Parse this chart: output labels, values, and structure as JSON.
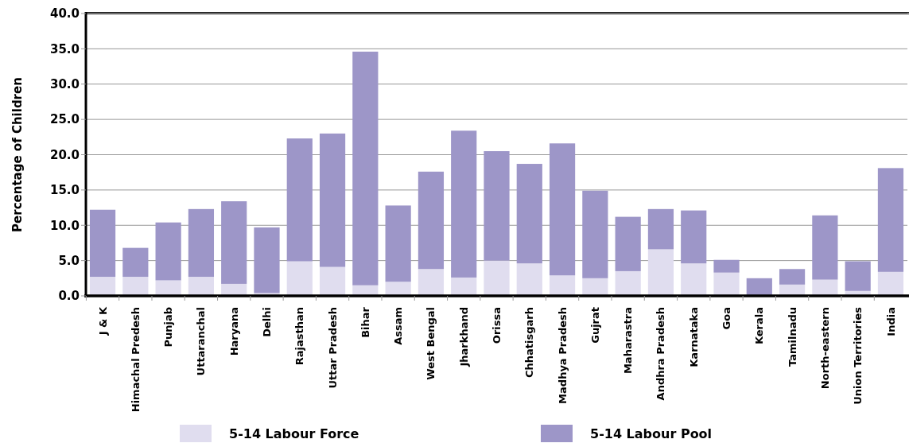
{
  "chart_data": {
    "type": "bar",
    "stacked": true,
    "ylabel": "Percentage of Children",
    "categories": [
      "J & K",
      "Himachal Predesh",
      "Punjab",
      "Uttaranchal",
      "Haryana",
      "Delhi",
      "Rajasthan",
      "Uttar Pradesh",
      "Bihar",
      "Assam",
      "West Bengal",
      "Jharkhand",
      "Orissa",
      "Chhatisgarh",
      "Madhya Pradesh",
      "Gujrat",
      "Maharastra",
      "Andhra Pradesh",
      "Karnataka",
      "Goa",
      "Kerala",
      "Tamilnadu",
      "North-eastern",
      "Union Territories",
      "India"
    ],
    "series": [
      {
        "name": "5-14 Labour Force",
        "color": "#e0ddef",
        "values": [
          2.7,
          2.7,
          2.2,
          2.7,
          1.7,
          0.4,
          4.9,
          4.1,
          1.5,
          2.0,
          3.8,
          2.6,
          5.0,
          4.6,
          2.9,
          2.5,
          3.5,
          6.6,
          4.6,
          3.3,
          0,
          1.6,
          2.3,
          0.7,
          3.4
        ]
      },
      {
        "name": "5-14 Labour Pool",
        "color": "#9d96c8",
        "values": [
          9.5,
          4.1,
          8.2,
          9.6,
          11.7,
          9.3,
          17.4,
          18.9,
          33.1,
          10.8,
          13.8,
          20.8,
          15.5,
          14.1,
          18.7,
          12.4,
          7.7,
          5.7,
          7.5,
          1.8,
          2.5,
          2.2,
          9.1,
          4.2,
          14.7
        ]
      }
    ],
    "ylim": [
      0,
      40
    ],
    "yticks": [
      {
        "value": 0,
        "label": "0.0"
      },
      {
        "value": 5,
        "label": "5.0"
      },
      {
        "value": 10,
        "label": "10.0"
      },
      {
        "value": 15,
        "label": "15.0"
      },
      {
        "value": 20,
        "label": "20.0"
      },
      {
        "value": 25,
        "label": "25.0"
      },
      {
        "value": 30,
        "label": "30.0"
      },
      {
        "value": 35,
        "label": "35.0"
      },
      {
        "value": 40,
        "label": "40.0"
      }
    ],
    "grid": "y",
    "legend": "bottom"
  }
}
